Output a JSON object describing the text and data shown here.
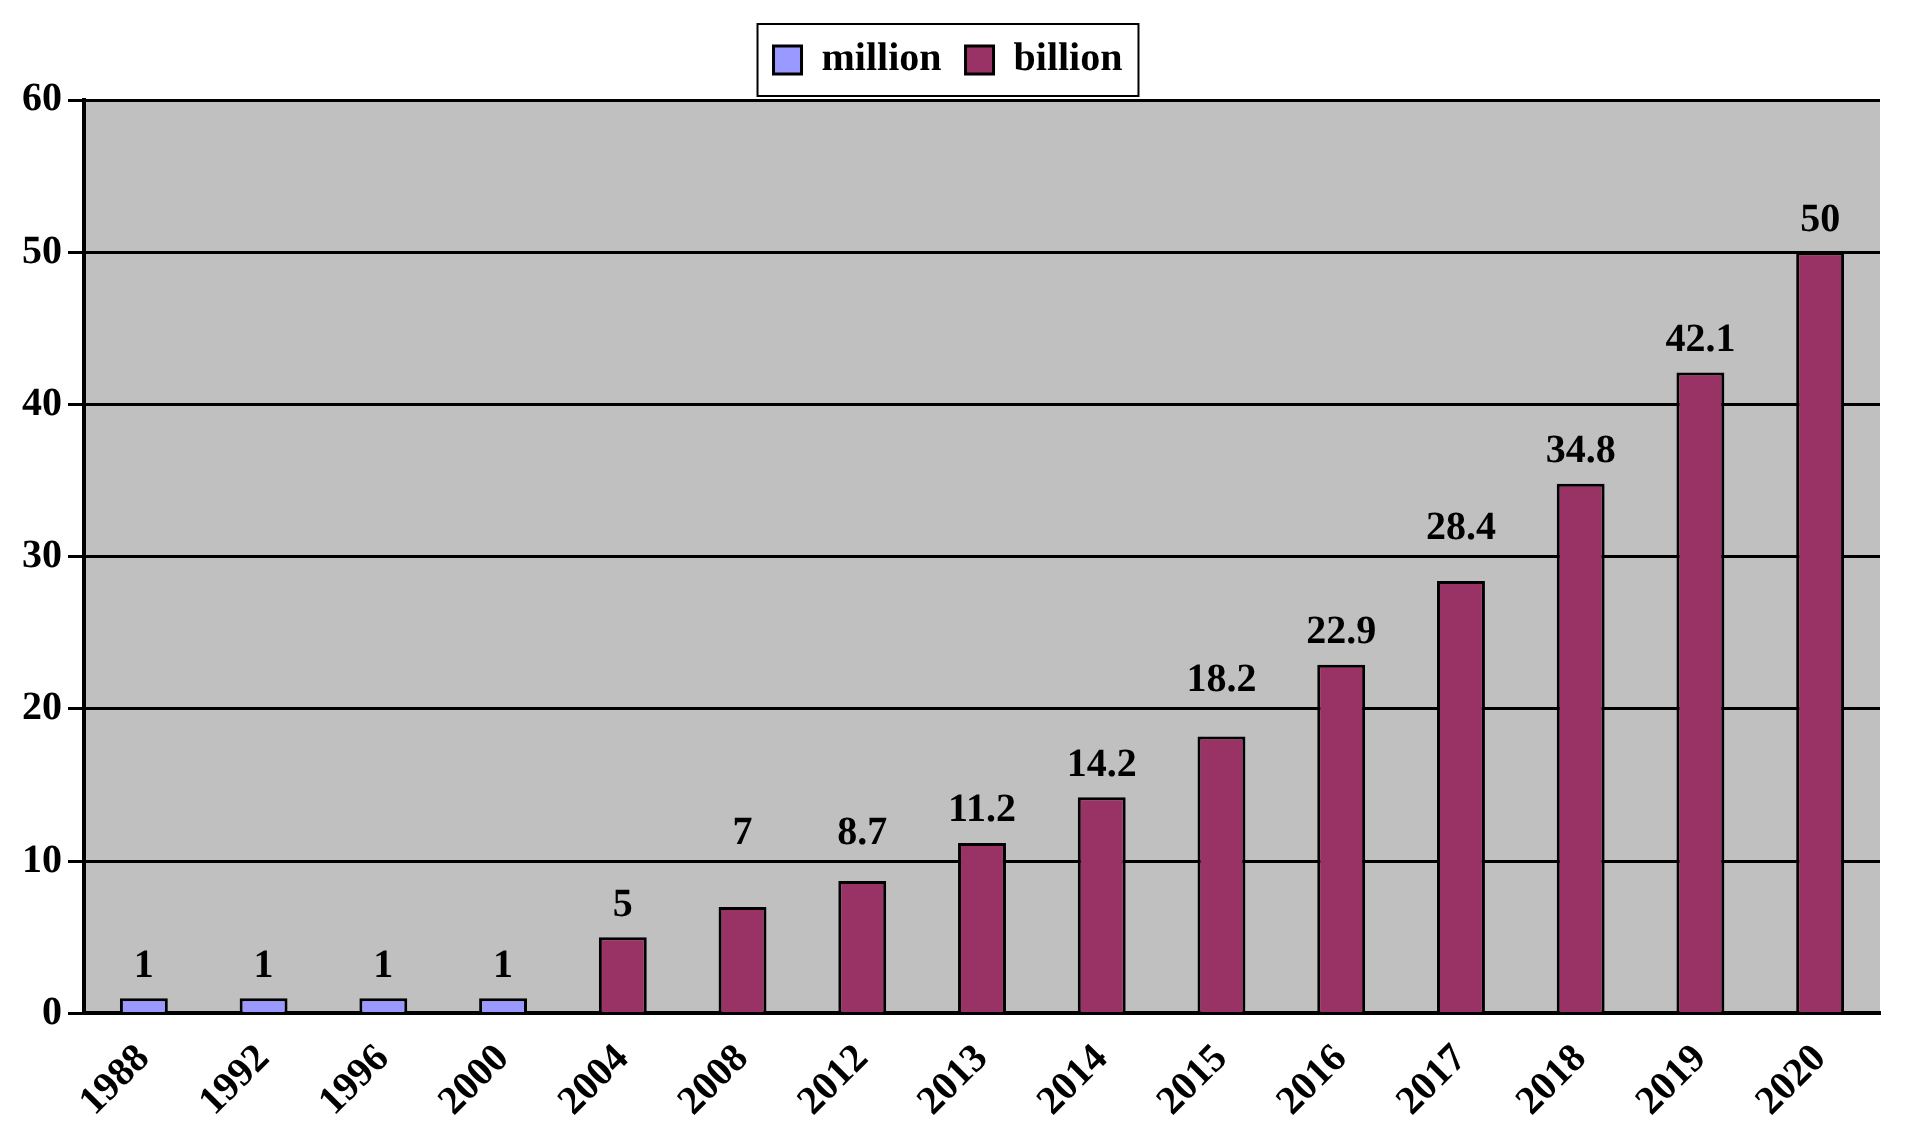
{
  "chart_data": {
    "type": "bar",
    "categories": [
      "1988",
      "1992",
      "1996",
      "2000",
      "2004",
      "2008",
      "2012",
      "2013",
      "2014",
      "2015",
      "2016",
      "2017",
      "2018",
      "2019",
      "2020"
    ],
    "series": [
      {
        "name": "million",
        "color": "#9999ff",
        "values": [
          1,
          1,
          1,
          1,
          null,
          null,
          null,
          null,
          null,
          null,
          null,
          null,
          null,
          null,
          null
        ]
      },
      {
        "name": "billion",
        "color": "#993366",
        "values": [
          null,
          null,
          null,
          null,
          5,
          7,
          8.7,
          11.2,
          14.2,
          18.2,
          22.9,
          28.4,
          34.8,
          42.1,
          50
        ]
      }
    ],
    "ylim": [
      0,
      60
    ],
    "yticks": [
      0,
      10,
      20,
      30,
      40,
      50,
      60
    ],
    "grid": "y",
    "legend": "top",
    "data_labels": true
  }
}
